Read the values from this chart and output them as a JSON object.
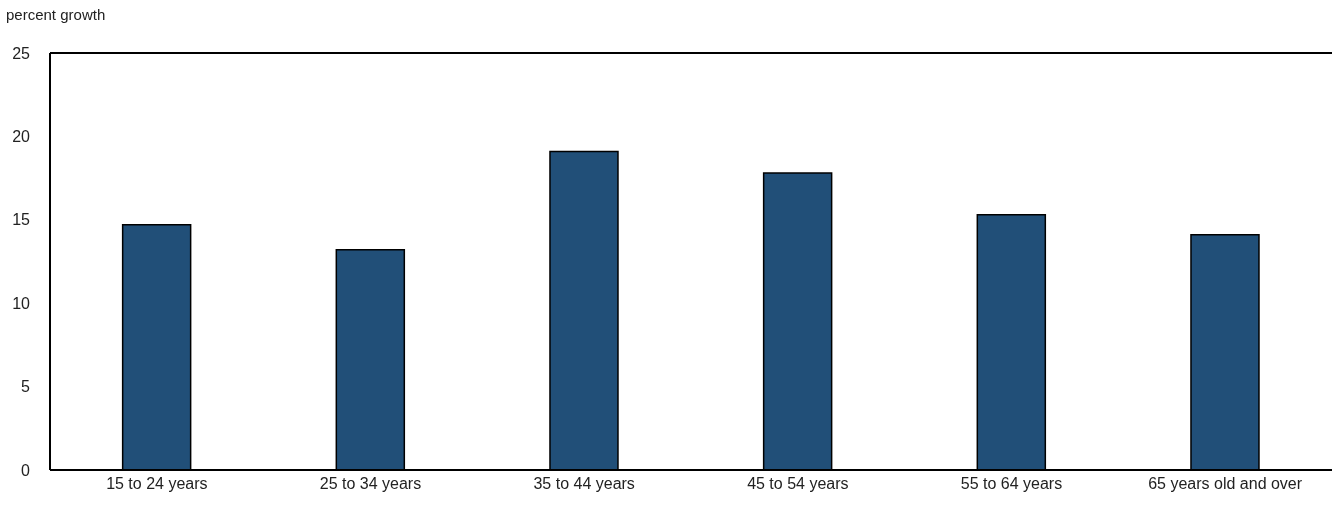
{
  "chart_data": {
    "type": "bar",
    "ylabel": "percent growth",
    "categories": [
      "15 to 24 years",
      "25 to 34 years",
      "35 to 44 years",
      "45 to 54 years",
      "55 to 64 years",
      "65 years old and over"
    ],
    "values": [
      14.7,
      13.2,
      19.1,
      17.8,
      15.3,
      14.1
    ],
    "color": "#214f78",
    "ylim": [
      0,
      25
    ],
    "yticks": [
      0,
      5,
      10,
      15,
      20,
      25
    ],
    "grid": false
  }
}
